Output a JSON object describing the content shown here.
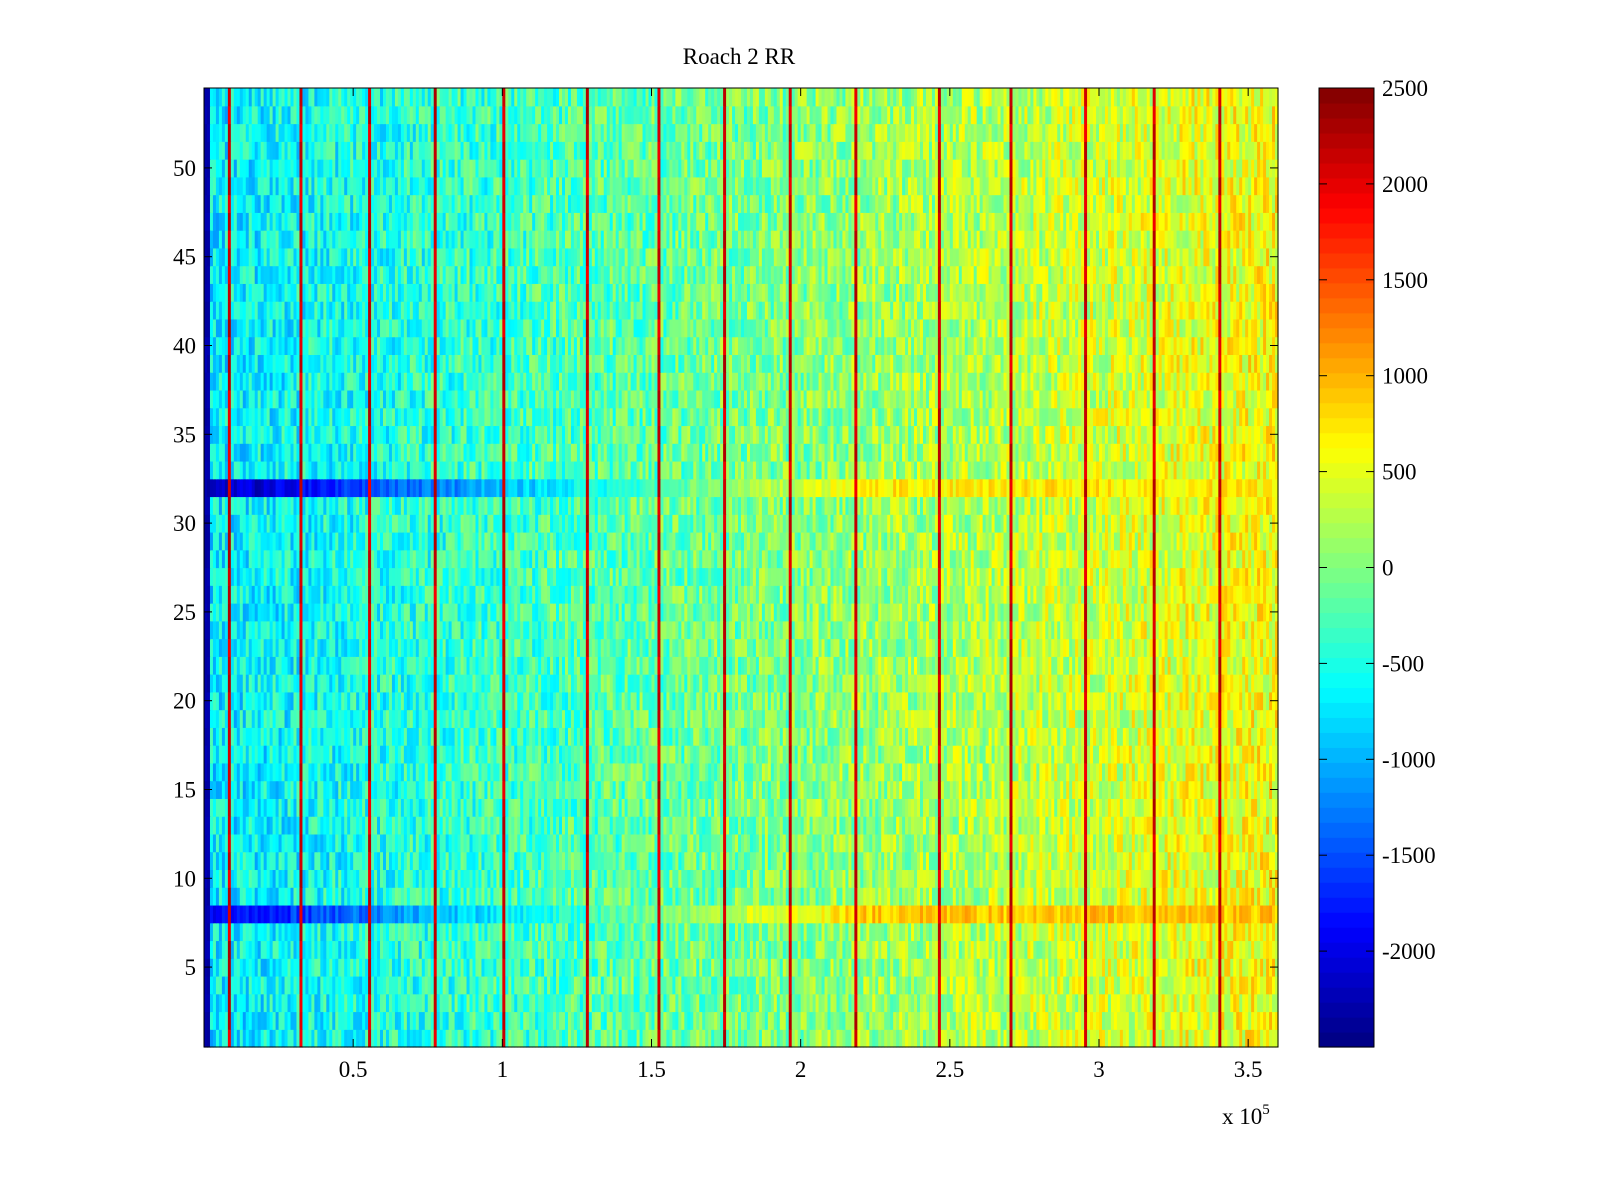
{
  "chart_data": {
    "type": "heatmap",
    "title": "Roach 2 RR",
    "xlabel": "",
    "ylabel": "",
    "x_multiplier_label": {
      "prefix": "x 10",
      "exponent": "5"
    },
    "xlim": [
      0,
      3.6
    ],
    "ylim": [
      0.5,
      54.5
    ],
    "x_ticks": [
      0.5,
      1,
      1.5,
      2,
      2.5,
      3,
      3.5
    ],
    "x_tick_labels": [
      "0.5",
      "1",
      "1.5",
      "2",
      "2.5",
      "3",
      "3.5"
    ],
    "y_ticks": [
      5,
      10,
      15,
      20,
      25,
      30,
      35,
      40,
      45,
      50
    ],
    "y_tick_labels": [
      "5",
      "10",
      "15",
      "20",
      "25",
      "30",
      "35",
      "40",
      "45",
      "50"
    ],
    "rows": 54,
    "columns": 360,
    "colorbar": {
      "colormap": "jet",
      "clim": [
        -2500,
        2500
      ],
      "ticks": [
        -2000,
        -1500,
        -1000,
        -500,
        0,
        500,
        1000,
        1500,
        2000,
        2500
      ],
      "tick_labels": [
        "-2000",
        "-1500",
        "-1000",
        "-500",
        "0",
        "500",
        "1000",
        "1500",
        "2000",
        "2500"
      ]
    },
    "description_of_data": "Noisy field around -700 at left rising to about +600 toward the right; periodic vertical stripes of high value (~2000) every ~0.22e5; first column strongly negative; rows 8 and 32 have distinct bands (negative at left, positive at right).",
    "field_model": {
      "trend_left": -700,
      "trend_right": 600,
      "noise_amplitude": 450,
      "stripe_positions_x": [
        0.08,
        0.32,
        0.55,
        0.77,
        1.0,
        1.28,
        1.52,
        1.74,
        1.96,
        2.18,
        2.46,
        2.7,
        2.95,
        3.18,
        3.4
      ],
      "stripe_value": 2100,
      "first_column_value": -2300,
      "special_rows": [
        {
          "row": 8,
          "left_value": -2000,
          "right_value": 900
        },
        {
          "row": 32,
          "left_value": -2300,
          "right_value": 700
        }
      ]
    }
  }
}
